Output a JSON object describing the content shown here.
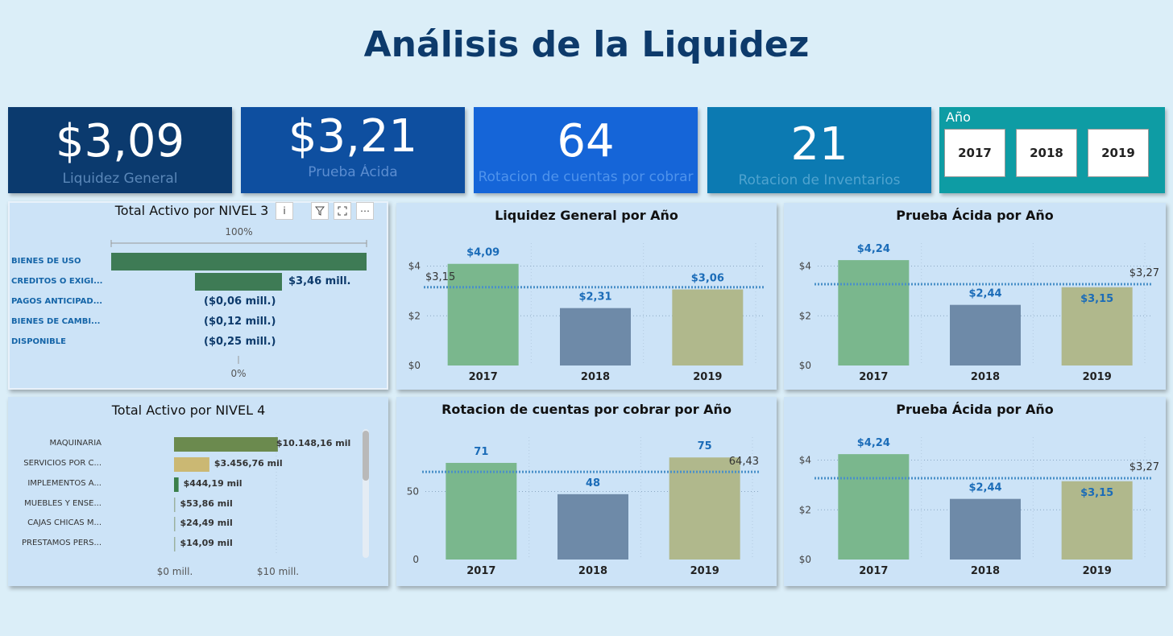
{
  "page": {
    "title": "Análisis de la Liquidez"
  },
  "kpis": [
    {
      "value": "$3,09",
      "label": "Liquidez General",
      "bg": "#0b3a6e",
      "label_color": "#5a87b8"
    },
    {
      "value": "$3,21",
      "label": "Prueba Ácida",
      "bg": "#0e4fa0",
      "label_color": "#5b8dd0"
    },
    {
      "value": "64",
      "label": "Rotacion de cuentas por cobrar",
      "bg": "#1565d8",
      "label_color": "#4f93ec"
    },
    {
      "value": "21",
      "label": "Rotacion de Inventarios",
      "bg": "#0c7ab2",
      "label_color": "#4fa3cf"
    }
  ],
  "slicer": {
    "title": "Año",
    "options": [
      "2017",
      "2018",
      "2019"
    ]
  },
  "panels": {
    "nivel3": {
      "title": "Total Activo por NIVEL 3",
      "icons": [
        "info-icon",
        "filter-icon",
        "focus-icon",
        "more-icon"
      ]
    },
    "nivel4": {
      "title": "Total Activo por NIVEL 4"
    }
  },
  "colors": {
    "green": "#7ab78d",
    "slate": "#6e8aa8",
    "olive": "#b0b88c",
    "avg_line": "#4a90c8",
    "data_label": "#1b6cb8",
    "nivel3_bar": "#3e7b55",
    "nivel4_bar1": "#6b8a4e",
    "nivel4_bar2": "#cbb873",
    "nivel4_bar3": "#3a7f4a"
  },
  "chart_data": [
    {
      "id": "nivel3",
      "type": "bar",
      "orientation": "horizontal",
      "title": "Total Activo por NIVEL 3",
      "top_label": "100%",
      "bottom_label": "0%",
      "categories": [
        "BIENES DE USO",
        "CREDITOS O EXIGI...",
        "PAGOS ANTICIPAD...",
        "BIENES DE CAMBI...",
        "DISPONIBLE"
      ],
      "values": [
        null,
        3.46,
        -0.06,
        -0.12,
        -0.25
      ],
      "value_labels": [
        "",
        "$3,46 mill.",
        "($0,06 mill.)",
        "($0,12 mill.)",
        "($0,25 mill.)"
      ]
    },
    {
      "id": "nivel4",
      "type": "bar",
      "orientation": "horizontal",
      "title": "Total Activo por NIVEL 4",
      "categories": [
        "MAQUINARIA",
        "SERVICIOS POR C...",
        "IMPLEMENTOS A...",
        "MUEBLES Y ENSE...",
        "CAJAS CHICAS M...",
        "PRESTAMOS PERS..."
      ],
      "values": [
        10148.16,
        3456.76,
        444.19,
        53.86,
        24.49,
        14.09
      ],
      "value_labels": [
        "$10.148,16 mil",
        "$3.456,76 mil",
        "$444,19 mil",
        "$53,86 mil",
        "$24,49 mil",
        "$14,09 mil"
      ],
      "xticks": [
        "$0 mill.",
        "$10 mill."
      ],
      "xlim": [
        0,
        10000
      ]
    },
    {
      "id": "liq",
      "type": "bar",
      "title": "Liquidez General por Año",
      "categories": [
        "2017",
        "2018",
        "2019"
      ],
      "values": [
        4.09,
        2.31,
        3.06
      ],
      "value_labels": [
        "$4,09",
        "$2,31",
        "$3,06"
      ],
      "average": 3.15,
      "average_label": "$3,15",
      "yticks": [
        "$0",
        "$2",
        "$4"
      ],
      "ylim": [
        0,
        4.6
      ]
    },
    {
      "id": "pa1",
      "type": "bar",
      "title": "Prueba Ácida por Año",
      "categories": [
        "2017",
        "2018",
        "2019"
      ],
      "values": [
        4.24,
        2.44,
        3.15
      ],
      "value_labels": [
        "$4,24",
        "$2,44",
        "$3,15"
      ],
      "average": 3.27,
      "average_label": "$3,27",
      "yticks": [
        "$0",
        "$2",
        "$4"
      ],
      "ylim": [
        0,
        4.6
      ]
    },
    {
      "id": "rot",
      "type": "bar",
      "title": "Rotacion de cuentas por cobrar por Año",
      "categories": [
        "2017",
        "2018",
        "2019"
      ],
      "values": [
        71,
        48,
        75
      ],
      "value_labels": [
        "71",
        "48",
        "75"
      ],
      "average": 64.43,
      "average_label": "64,43",
      "yticks": [
        "0",
        "50"
      ],
      "ylim": [
        0,
        84
      ]
    },
    {
      "id": "pa2",
      "type": "bar",
      "title": "Prueba Ácida por Año",
      "categories": [
        "2017",
        "2018",
        "2019"
      ],
      "values": [
        4.24,
        2.44,
        3.15
      ],
      "value_labels": [
        "$4,24",
        "$2,44",
        "$3,15"
      ],
      "average": 3.27,
      "average_label": "$3,27",
      "yticks": [
        "$0",
        "$2",
        "$4"
      ],
      "ylim": [
        0,
        4.6
      ]
    }
  ]
}
